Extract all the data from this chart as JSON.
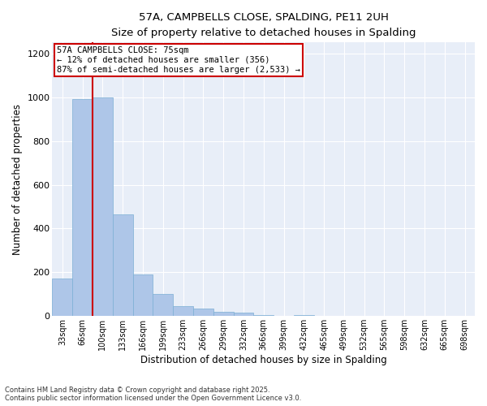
{
  "title_line1": "57A, CAMPBELLS CLOSE, SPALDING, PE11 2UH",
  "title_line2": "Size of property relative to detached houses in Spalding",
  "xlabel": "Distribution of detached houses by size in Spalding",
  "ylabel": "Number of detached properties",
  "annotation_title": "57A CAMPBELLS CLOSE: 75sqm",
  "annotation_line1": "← 12% of detached houses are smaller (356)",
  "annotation_line2": "87% of semi-detached houses are larger (2,533) →",
  "footer_line1": "Contains HM Land Registry data © Crown copyright and database right 2025.",
  "footer_line2": "Contains public sector information licensed under the Open Government Licence v3.0.",
  "categories": [
    "33sqm",
    "66sqm",
    "100sqm",
    "133sqm",
    "166sqm",
    "199sqm",
    "233sqm",
    "266sqm",
    "299sqm",
    "332sqm",
    "366sqm",
    "399sqm",
    "432sqm",
    "465sqm",
    "499sqm",
    "532sqm",
    "565sqm",
    "598sqm",
    "632sqm",
    "665sqm",
    "698sqm"
  ],
  "values": [
    170,
    990,
    1000,
    465,
    190,
    100,
    45,
    35,
    20,
    15,
    5,
    0,
    5,
    0,
    0,
    0,
    0,
    0,
    0,
    0,
    0
  ],
  "bar_color": "#aec6e8",
  "bar_edge_color": "#7bafd4",
  "bg_color": "#e8eef8",
  "grid_color": "#ffffff",
  "vline_color": "#cc0000",
  "annotation_box_color": "#cc0000",
  "ylim": [
    0,
    1250
  ],
  "yticks": [
    0,
    200,
    400,
    600,
    800,
    1000,
    1200
  ]
}
